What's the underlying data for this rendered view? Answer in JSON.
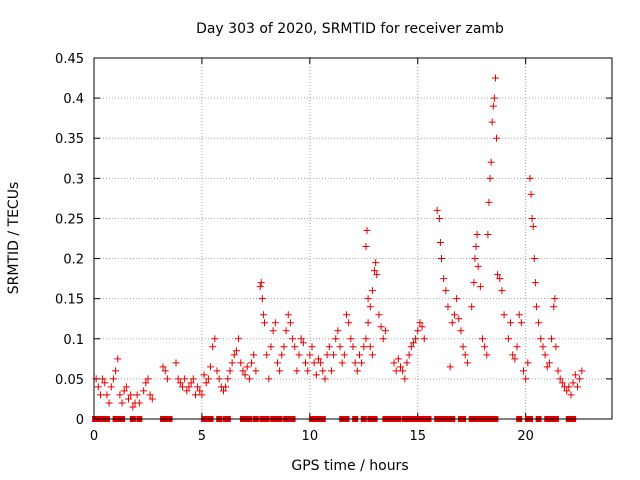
{
  "chart_data": {
    "type": "scatter",
    "title": "Day 303 of 2020, SRMTID for receiver zamb",
    "xlabel": "GPS time / hours",
    "ylabel": "SRMTID / TECUs",
    "xlim": [
      0,
      24
    ],
    "ylim": [
      0,
      0.45
    ],
    "xticks": [
      0,
      5,
      10,
      15,
      20
    ],
    "xtick_labels": [
      "0",
      "5",
      "10",
      "15",
      "20"
    ],
    "yticks": [
      0,
      0.05,
      0.1,
      0.15,
      0.2,
      0.25,
      0.3,
      0.35,
      0.4,
      0.45
    ],
    "ytick_labels": [
      "0",
      "0.05",
      "0.1",
      "0.15",
      "0.2",
      "0.25",
      "0.3",
      "0.35",
      "0.4",
      "0.45"
    ],
    "grid": true,
    "marker": "plus",
    "series": [
      {
        "name": "SRMTID",
        "color": "#e00000",
        "points": [
          [
            0.1,
            0.05
          ],
          [
            0.2,
            0.04
          ],
          [
            0.3,
            0.03
          ],
          [
            0.4,
            0.05
          ],
          [
            0.5,
            0.045
          ],
          [
            0.6,
            0.03
          ],
          [
            0.7,
            0.02
          ],
          [
            0.8,
            0.04
          ],
          [
            0.9,
            0.05
          ],
          [
            1.0,
            0.06
          ],
          [
            1.1,
            0.075
          ],
          [
            1.2,
            0.03
          ],
          [
            1.3,
            0.02
          ],
          [
            1.4,
            0.035
          ],
          [
            1.5,
            0.04
          ],
          [
            1.6,
            0.025
          ],
          [
            1.7,
            0.03
          ],
          [
            1.8,
            0.015
          ],
          [
            1.9,
            0.02
          ],
          [
            2.0,
            0.03
          ],
          [
            2.1,
            0.02
          ],
          [
            2.3,
            0.035
          ],
          [
            2.4,
            0.045
          ],
          [
            2.5,
            0.05
          ],
          [
            2.6,
            0.03
          ],
          [
            2.7,
            0.025
          ],
          [
            3.2,
            0.065
          ],
          [
            3.3,
            0.06
          ],
          [
            3.4,
            0.05
          ],
          [
            3.8,
            0.07
          ],
          [
            3.9,
            0.05
          ],
          [
            4.0,
            0.045
          ],
          [
            4.1,
            0.04
          ],
          [
            4.2,
            0.05
          ],
          [
            4.3,
            0.035
          ],
          [
            4.4,
            0.04
          ],
          [
            4.5,
            0.045
          ],
          [
            4.6,
            0.05
          ],
          [
            4.7,
            0.03
          ],
          [
            4.8,
            0.04
          ],
          [
            4.9,
            0.035
          ],
          [
            5.0,
            0.03
          ],
          [
            5.1,
            0.055
          ],
          [
            5.2,
            0.045
          ],
          [
            5.3,
            0.05
          ],
          [
            5.4,
            0.065
          ],
          [
            5.5,
            0.09
          ],
          [
            5.6,
            0.1
          ],
          [
            5.7,
            0.06
          ],
          [
            5.8,
            0.05
          ],
          [
            5.9,
            0.04
          ],
          [
            6.0,
            0.035
          ],
          [
            6.1,
            0.04
          ],
          [
            6.2,
            0.05
          ],
          [
            6.3,
            0.06
          ],
          [
            6.4,
            0.07
          ],
          [
            6.5,
            0.08
          ],
          [
            6.6,
            0.085
          ],
          [
            6.7,
            0.1
          ],
          [
            6.8,
            0.07
          ],
          [
            6.9,
            0.06
          ],
          [
            7.0,
            0.055
          ],
          [
            7.1,
            0.065
          ],
          [
            7.2,
            0.05
          ],
          [
            7.3,
            0.07
          ],
          [
            7.4,
            0.08
          ],
          [
            7.5,
            0.06
          ],
          [
            7.7,
            0.165
          ],
          [
            7.75,
            0.17
          ],
          [
            7.8,
            0.15
          ],
          [
            7.85,
            0.13
          ],
          [
            7.9,
            0.12
          ],
          [
            8.0,
            0.08
          ],
          [
            8.1,
            0.05
          ],
          [
            8.2,
            0.09
          ],
          [
            8.3,
            0.11
          ],
          [
            8.4,
            0.12
          ],
          [
            8.5,
            0.07
          ],
          [
            8.6,
            0.06
          ],
          [
            8.7,
            0.08
          ],
          [
            8.8,
            0.09
          ],
          [
            8.9,
            0.11
          ],
          [
            9.0,
            0.13
          ],
          [
            9.1,
            0.12
          ],
          [
            9.2,
            0.1
          ],
          [
            9.3,
            0.09
          ],
          [
            9.4,
            0.06
          ],
          [
            9.5,
            0.08
          ],
          [
            9.6,
            0.1
          ],
          [
            9.7,
            0.095
          ],
          [
            9.8,
            0.07
          ],
          [
            9.9,
            0.06
          ],
          [
            10.0,
            0.08
          ],
          [
            10.1,
            0.09
          ],
          [
            10.2,
            0.07
          ],
          [
            10.3,
            0.055
          ],
          [
            10.4,
            0.075
          ],
          [
            10.5,
            0.07
          ],
          [
            10.6,
            0.06
          ],
          [
            10.7,
            0.05
          ],
          [
            10.8,
            0.08
          ],
          [
            10.9,
            0.09
          ],
          [
            11.0,
            0.06
          ],
          [
            11.1,
            0.08
          ],
          [
            11.2,
            0.1
          ],
          [
            11.3,
            0.11
          ],
          [
            11.4,
            0.09
          ],
          [
            11.5,
            0.07
          ],
          [
            11.6,
            0.08
          ],
          [
            11.7,
            0.13
          ],
          [
            11.8,
            0.12
          ],
          [
            11.9,
            0.1
          ],
          [
            12.0,
            0.09
          ],
          [
            12.1,
            0.07
          ],
          [
            12.2,
            0.06
          ],
          [
            12.3,
            0.08
          ],
          [
            12.4,
            0.07
          ],
          [
            12.5,
            0.09
          ],
          [
            12.6,
            0.1
          ],
          [
            12.7,
            0.12
          ],
          [
            12.8,
            0.09
          ],
          [
            12.9,
            0.08
          ],
          [
            12.6,
            0.215
          ],
          [
            12.65,
            0.235
          ],
          [
            12.7,
            0.15
          ],
          [
            12.8,
            0.14
          ],
          [
            12.9,
            0.16
          ],
          [
            13.0,
            0.185
          ],
          [
            13.05,
            0.195
          ],
          [
            13.1,
            0.18
          ],
          [
            13.2,
            0.13
          ],
          [
            13.3,
            0.115
          ],
          [
            13.4,
            0.1
          ],
          [
            13.5,
            0.11
          ],
          [
            13.9,
            0.07
          ],
          [
            14.0,
            0.06
          ],
          [
            14.1,
            0.075
          ],
          [
            14.2,
            0.065
          ],
          [
            14.3,
            0.06
          ],
          [
            14.4,
            0.05
          ],
          [
            14.5,
            0.07
          ],
          [
            14.6,
            0.08
          ],
          [
            14.7,
            0.09
          ],
          [
            14.8,
            0.095
          ],
          [
            14.9,
            0.1
          ],
          [
            15.0,
            0.11
          ],
          [
            15.1,
            0.12
          ],
          [
            15.2,
            0.115
          ],
          [
            15.3,
            0.1
          ],
          [
            15.9,
            0.26
          ],
          [
            16.0,
            0.25
          ],
          [
            16.05,
            0.22
          ],
          [
            16.1,
            0.2
          ],
          [
            16.2,
            0.175
          ],
          [
            16.3,
            0.16
          ],
          [
            16.4,
            0.14
          ],
          [
            16.5,
            0.065
          ],
          [
            16.6,
            0.12
          ],
          [
            16.7,
            0.13
          ],
          [
            16.8,
            0.15
          ],
          [
            16.9,
            0.125
          ],
          [
            17.0,
            0.11
          ],
          [
            17.1,
            0.09
          ],
          [
            17.2,
            0.08
          ],
          [
            17.3,
            0.07
          ],
          [
            17.5,
            0.14
          ],
          [
            17.6,
            0.17
          ],
          [
            17.65,
            0.2
          ],
          [
            17.7,
            0.215
          ],
          [
            17.75,
            0.23
          ],
          [
            17.8,
            0.19
          ],
          [
            17.9,
            0.165
          ],
          [
            18.0,
            0.1
          ],
          [
            18.1,
            0.09
          ],
          [
            18.2,
            0.08
          ],
          [
            18.25,
            0.23
          ],
          [
            18.3,
            0.27
          ],
          [
            18.35,
            0.3
          ],
          [
            18.4,
            0.32
          ],
          [
            18.45,
            0.37
          ],
          [
            18.5,
            0.39
          ],
          [
            18.55,
            0.4
          ],
          [
            18.6,
            0.425
          ],
          [
            18.65,
            0.35
          ],
          [
            18.7,
            0.18
          ],
          [
            18.8,
            0.175
          ],
          [
            18.9,
            0.16
          ],
          [
            19.0,
            0.13
          ],
          [
            19.2,
            0.1
          ],
          [
            19.3,
            0.12
          ],
          [
            19.4,
            0.08
          ],
          [
            19.5,
            0.075
          ],
          [
            19.6,
            0.09
          ],
          [
            19.7,
            0.13
          ],
          [
            19.8,
            0.12
          ],
          [
            19.9,
            0.06
          ],
          [
            20.0,
            0.05
          ],
          [
            20.1,
            0.07
          ],
          [
            20.2,
            0.3
          ],
          [
            20.25,
            0.28
          ],
          [
            20.3,
            0.25
          ],
          [
            20.35,
            0.24
          ],
          [
            20.4,
            0.2
          ],
          [
            20.45,
            0.17
          ],
          [
            20.5,
            0.14
          ],
          [
            20.6,
            0.12
          ],
          [
            20.7,
            0.1
          ],
          [
            20.8,
            0.09
          ],
          [
            20.9,
            0.08
          ],
          [
            21.0,
            0.065
          ],
          [
            21.1,
            0.07
          ],
          [
            21.2,
            0.1
          ],
          [
            21.3,
            0.14
          ],
          [
            21.35,
            0.15
          ],
          [
            21.4,
            0.09
          ],
          [
            21.5,
            0.06
          ],
          [
            21.6,
            0.05
          ],
          [
            21.7,
            0.045
          ],
          [
            21.8,
            0.04
          ],
          [
            21.9,
            0.035
          ],
          [
            22.0,
            0.04
          ],
          [
            22.1,
            0.03
          ],
          [
            22.2,
            0.045
          ],
          [
            22.3,
            0.055
          ],
          [
            22.4,
            0.04
          ],
          [
            22.5,
            0.05
          ],
          [
            22.6,
            0.06
          ]
        ]
      }
    ],
    "baseline_points": [
      0.05,
      0.2,
      0.3,
      0.5,
      0.6,
      1.0,
      1.1,
      1.3,
      1.8,
      2.1,
      3.2,
      3.4,
      3.5,
      5.1,
      5.3,
      5.4,
      5.8,
      6.1,
      6.2,
      6.9,
      7.0,
      7.2,
      7.5,
      7.8,
      8.0,
      8.3,
      8.4,
      8.6,
      8.9,
      9.0,
      9.2,
      10.1,
      10.3,
      10.4,
      10.6,
      11.5,
      11.7,
      12.1,
      12.5,
      12.8,
      13.0,
      13.5,
      13.6,
      13.8,
      13.9,
      14.1,
      14.4,
      14.5,
      14.7,
      14.8,
      14.9,
      15.1,
      15.3,
      15.5,
      15.9,
      16.1,
      16.2,
      16.4,
      16.6,
      17.0,
      17.1,
      17.5,
      17.6,
      17.8,
      18.0,
      18.2,
      18.4,
      18.6,
      19.7,
      20.1,
      20.2,
      20.6,
      21.0,
      21.2,
      21.4,
      22.0,
      22.2
    ]
  }
}
